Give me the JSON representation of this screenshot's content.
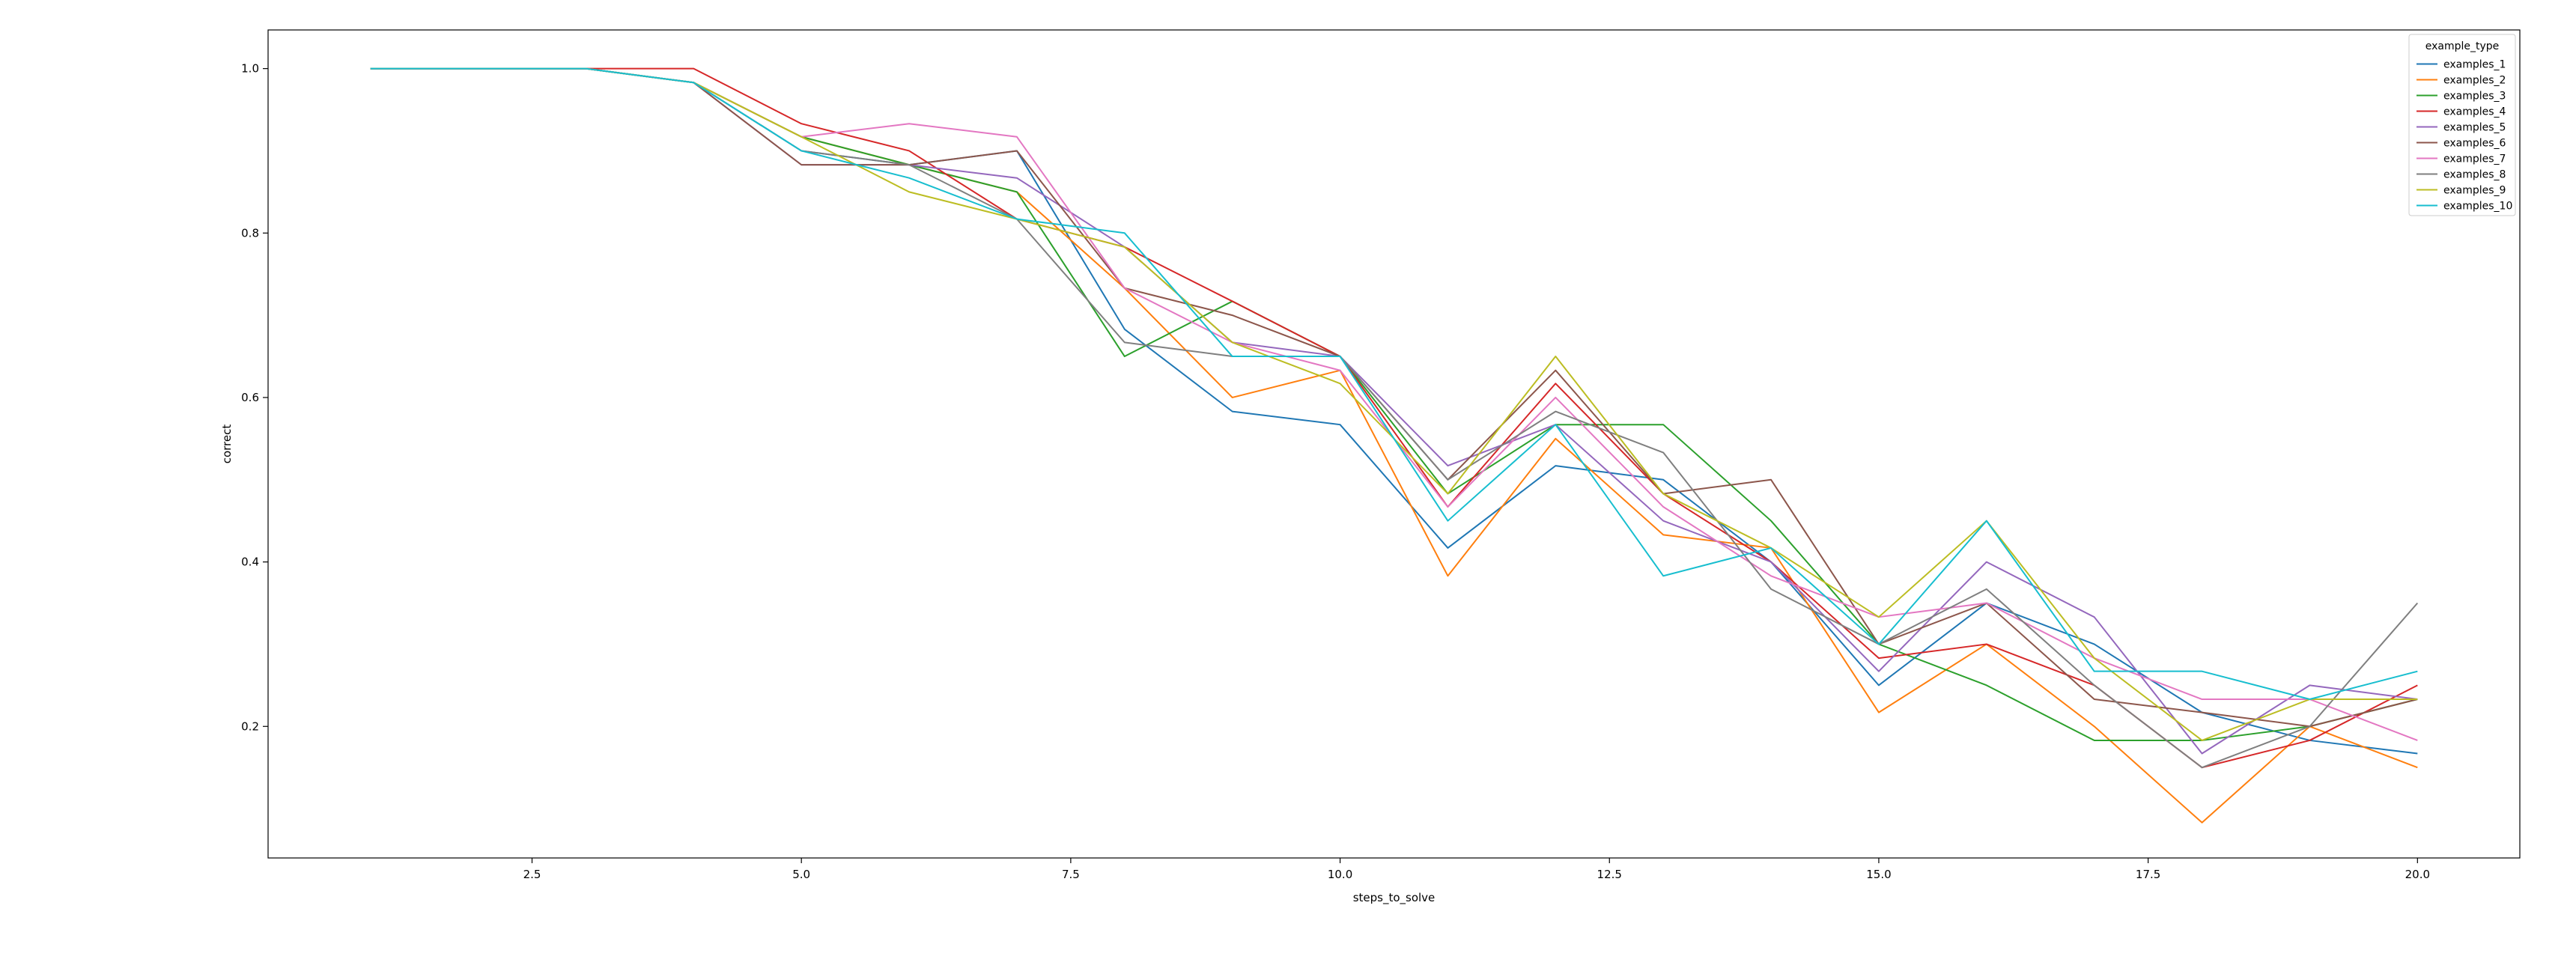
{
  "chart_data": {
    "type": "line",
    "xlabel": "steps_to_solve",
    "ylabel": "correct",
    "xlim": [
      0.05,
      20.95
    ],
    "ylim": [
      0.04,
      1.047
    ],
    "xticks": [
      "2.5",
      "5.0",
      "7.5",
      "10.0",
      "12.5",
      "15.0",
      "17.5",
      "20.0"
    ],
    "yticks": [
      "0.2",
      "0.4",
      "0.6",
      "0.8",
      "1.0"
    ],
    "grid": false,
    "legend": {
      "title": "example_type",
      "placement": "top-right"
    },
    "x": [
      1,
      2,
      3,
      4,
      5,
      6,
      7,
      8,
      9,
      10,
      11,
      12,
      13,
      14,
      15,
      16,
      17,
      18,
      19,
      20
    ],
    "series": [
      {
        "name": "examples_1",
        "color": "#1f77b4",
        "values": [
          1.0,
          1.0,
          1.0,
          0.983,
          0.9,
          0.883,
          0.9,
          0.683,
          0.583,
          0.567,
          0.417,
          0.517,
          0.5,
          0.4,
          0.25,
          0.35,
          0.3,
          0.217,
          0.183,
          0.167
        ]
      },
      {
        "name": "examples_2",
        "color": "#ff7f0e",
        "values": [
          1.0,
          1.0,
          1.0,
          0.983,
          0.917,
          0.883,
          0.85,
          0.733,
          0.6,
          0.633,
          0.383,
          0.55,
          0.433,
          0.417,
          0.217,
          0.3,
          0.2,
          0.083,
          0.2,
          0.15
        ]
      },
      {
        "name": "examples_3",
        "color": "#2ca02c",
        "values": [
          1.0,
          1.0,
          1.0,
          0.983,
          0.917,
          0.883,
          0.85,
          0.65,
          0.717,
          0.65,
          0.483,
          0.567,
          0.567,
          0.45,
          0.3,
          0.25,
          0.183,
          0.183,
          0.2,
          0.233
        ]
      },
      {
        "name": "examples_4",
        "color": "#d62728",
        "values": [
          1.0,
          1.0,
          1.0,
          1.0,
          0.933,
          0.9,
          0.817,
          0.783,
          0.717,
          0.65,
          0.467,
          0.617,
          0.483,
          0.4,
          0.283,
          0.3,
          0.25,
          0.15,
          0.183,
          0.25
        ]
      },
      {
        "name": "examples_5",
        "color": "#9467bd",
        "values": [
          1.0,
          1.0,
          1.0,
          0.983,
          0.883,
          0.883,
          0.867,
          0.783,
          0.667,
          0.65,
          0.517,
          0.567,
          0.45,
          0.4,
          0.267,
          0.4,
          0.333,
          0.167,
          0.25,
          0.233
        ]
      },
      {
        "name": "examples_6",
        "color": "#8c564b",
        "values": [
          1.0,
          1.0,
          1.0,
          0.983,
          0.883,
          0.883,
          0.9,
          0.733,
          0.7,
          0.65,
          0.5,
          0.633,
          0.483,
          0.5,
          0.3,
          0.35,
          0.233,
          0.217,
          0.2,
          0.233
        ]
      },
      {
        "name": "examples_7",
        "color": "#e377c2",
        "values": [
          1.0,
          1.0,
          1.0,
          0.983,
          0.917,
          0.933,
          0.917,
          0.733,
          0.667,
          0.633,
          0.467,
          0.6,
          0.467,
          0.383,
          0.333,
          0.35,
          0.283,
          0.233,
          0.233,
          0.183
        ]
      },
      {
        "name": "examples_8",
        "color": "#7f7f7f",
        "values": [
          1.0,
          1.0,
          1.0,
          0.983,
          0.9,
          0.883,
          0.817,
          0.667,
          0.65,
          0.65,
          0.5,
          0.583,
          0.533,
          0.367,
          0.3,
          0.367,
          0.25,
          0.15,
          0.2,
          0.35
        ]
      },
      {
        "name": "examples_9",
        "color": "#bcbd22",
        "values": [
          1.0,
          1.0,
          1.0,
          0.983,
          0.917,
          0.85,
          0.817,
          0.783,
          0.667,
          0.617,
          0.483,
          0.65,
          0.483,
          0.417,
          0.333,
          0.45,
          0.283,
          0.183,
          0.233,
          0.233
        ]
      },
      {
        "name": "examples_10",
        "color": "#17becf",
        "values": [
          1.0,
          1.0,
          1.0,
          0.983,
          0.9,
          0.867,
          0.817,
          0.8,
          0.65,
          0.65,
          0.45,
          0.567,
          0.383,
          0.417,
          0.3,
          0.45,
          0.267,
          0.267,
          0.233,
          0.267
        ]
      }
    ]
  }
}
